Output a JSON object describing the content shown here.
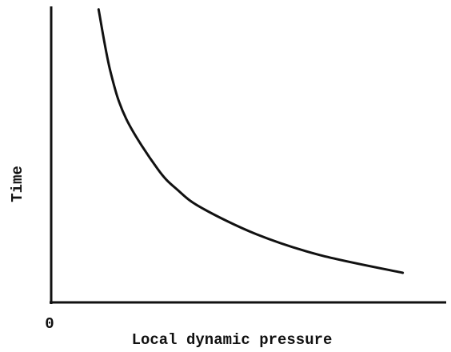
{
  "chart_data": {
    "type": "line",
    "xlabel": "Local dynamic pressure",
    "ylabel": "Time",
    "x": [
      12,
      15,
      19,
      27,
      32,
      38,
      52,
      68,
      89
    ],
    "values": [
      99,
      78,
      62,
      45,
      38,
      32,
      23,
      16,
      10
    ],
    "color": "#111111",
    "xlim": [
      0,
      100
    ],
    "ylim": [
      0,
      100
    ],
    "xticks": [
      0
    ],
    "grid": false
  }
}
